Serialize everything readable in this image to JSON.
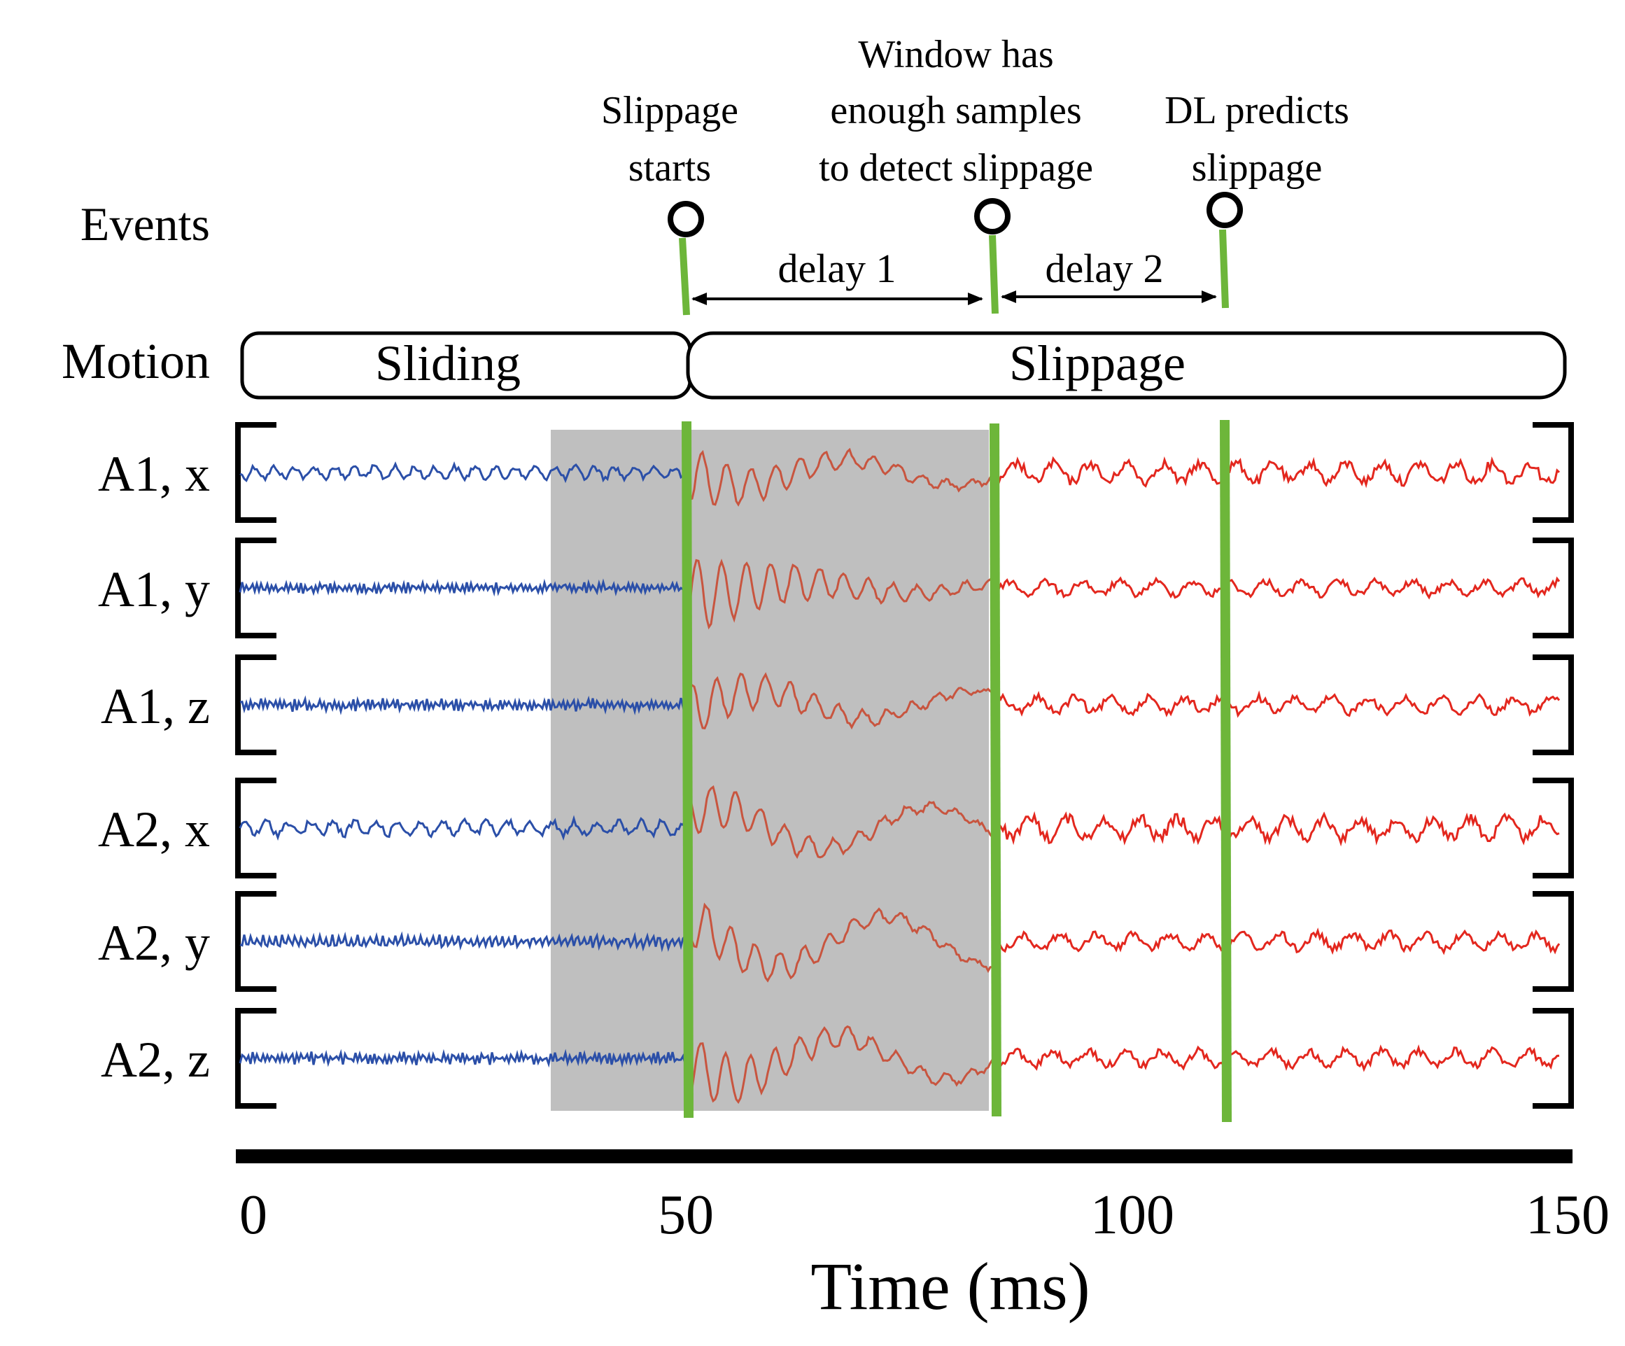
{
  "labels": {
    "events": "Events",
    "motion": "Motion",
    "sliding": "Sliding",
    "slippage": "Slippage",
    "delay1": "delay 1",
    "delay2": "delay 2",
    "xlabel": "Time (ms)"
  },
  "events": [
    {
      "lines": [
        "Slippage",
        "starts"
      ],
      "time": 50
    },
    {
      "lines": [
        "Window has",
        "enough samples",
        "to detect slippage"
      ],
      "time": 85
    },
    {
      "lines": [
        "DL predicts",
        "slippage"
      ],
      "time": 111
    }
  ],
  "axis": {
    "ticks": [
      "0",
      "50",
      "100",
      "150"
    ]
  },
  "channels": [
    "A1, x",
    "A1, y",
    "A1, z",
    "A2, x",
    "A2, y",
    "A2, z"
  ],
  "colors": {
    "sliding_signal": "#2b4fa8",
    "slippage_signal": "#e3271e",
    "shaded_signal": "#c8553f",
    "event_line": "#6db63a",
    "shade": "#bfbfbf"
  }
}
